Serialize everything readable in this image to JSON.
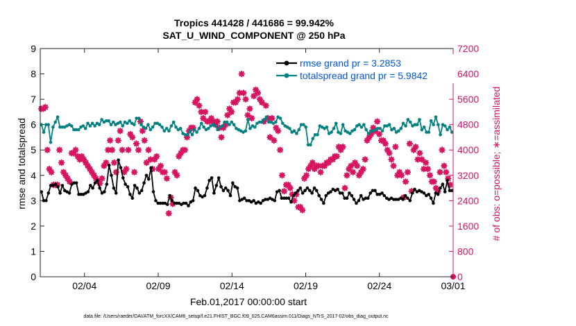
{
  "chart_data": {
    "type": "line",
    "title": "Tropics 441428 / 441686 = 99.942%",
    "subtitle": "SAT_U_WIND_COMPONENT @ 250 hPa",
    "xlabel": "Feb.01,2017 00:00:00 start",
    "ylabel_left": "rmse and totalspread",
    "ylabel_right": "# of obs: o=possible; ∗=assimilated",
    "xlim": [
      1,
      29
    ],
    "ylim_left": [
      0,
      9
    ],
    "ylim_right": [
      0,
      7200
    ],
    "x_tick_labels": [
      "02/04",
      "02/09",
      "02/14",
      "02/19",
      "02/24",
      "03/01"
    ],
    "x_tick_values": [
      4,
      9,
      14,
      19,
      24,
      29
    ],
    "y_ticks_left": [
      "0",
      "1",
      "2",
      "3",
      "4",
      "5",
      "6",
      "7",
      "8",
      "9"
    ],
    "y_ticks_right": [
      "0",
      "800",
      "1600",
      "2400",
      "3200",
      "4000",
      "4800",
      "5600",
      "6400",
      "7200"
    ],
    "footnote": "data file: /Users/raeder/DAI/ATM_forcXX/CAM6_setup/f.e21.FHIST_BGC.f09_025.CAM6assim.011/Diags_NTrS_2017-02/obs_diag_output.nc",
    "colors": {
      "rmse": "#000000",
      "spread": "#008080",
      "obs": "#d6145f",
      "legend_text": "#0055dd"
    },
    "series": [
      {
        "name": "rmse grand pr = 3.2853",
        "role": "rmse",
        "values": [
          3.35,
          3.0,
          3.0,
          3.3,
          3.6,
          3.6,
          3.65,
          3.55,
          3.3,
          3.6,
          3.4,
          3.35,
          3.3,
          3.65,
          3.7,
          3.7,
          3.25,
          3.25,
          3.25,
          3.3,
          3.35,
          3.6,
          3.5,
          3.7,
          3.8,
          3.5,
          3.3,
          3.35,
          3.65,
          4.4,
          4.0,
          3.5,
          3.3,
          4.6,
          4.3,
          3.9,
          3.65,
          3.55,
          3.25,
          3.1,
          3.6,
          3.5,
          3.3,
          3.4,
          3.7,
          4.0,
          3.85,
          4.3,
          3.35,
          3.0,
          2.9,
          2.9,
          2.9,
          2.9,
          2.85,
          3.2,
          3.0,
          2.9,
          2.9,
          2.9,
          2.85,
          2.9,
          2.9,
          2.8,
          2.95,
          3.0,
          3.5,
          3.4,
          3.2,
          3.15,
          3.2,
          3.5,
          3.8,
          3.9,
          3.3,
          3.6,
          3.9,
          3.55,
          3.4,
          3.5,
          3.4,
          3.2,
          3.7,
          3.55,
          3.5,
          3.0,
          3.05,
          3.1,
          3.0,
          3.0,
          2.95,
          3.0,
          2.9,
          2.95,
          2.9,
          3.0,
          3.05,
          3.05,
          3.1,
          3.05,
          3.0,
          3.35,
          3.4,
          3.1,
          3.1,
          3.1,
          3.1,
          2.95,
          3.2,
          3.3,
          3.4,
          3.5,
          3.3,
          3.4,
          3.5,
          3.4,
          3.3,
          3.5,
          3.4,
          3.2,
          3.05,
          2.9,
          3.2,
          3.3,
          3.35,
          3.45,
          3.4,
          3.45,
          3.3,
          3.3,
          3.1,
          3.1,
          3.3,
          3.2,
          3.05,
          2.9,
          3.0,
          3.2,
          3.05,
          3.1,
          3.1,
          3.3,
          3.4,
          3.4,
          3.25,
          3.25,
          3.3,
          3.2,
          3.1,
          3.05,
          3.1,
          3.05,
          3.05,
          3.05,
          3.1,
          3.05,
          3.2,
          3.1,
          3.0,
          3.3,
          3.45,
          3.35,
          3.4,
          3.35,
          3.3,
          3.2,
          3.25,
          3.1,
          2.9,
          3.3,
          3.25,
          3.5,
          3.65,
          3.35,
          3.8,
          3.4,
          3.4
        ]
      },
      {
        "name": "totalspread grand pr = 5.9842",
        "role": "spread",
        "values": [
          6.0,
          5.7,
          6.0,
          6.0,
          5.3,
          5.9,
          6.1,
          6.3,
          5.9,
          5.9,
          5.9,
          5.95,
          6.0,
          5.95,
          5.8,
          5.8,
          5.8,
          5.9,
          5.95,
          5.85,
          6.05,
          5.95,
          6.05,
          5.95,
          6.05,
          6.0,
          6.2,
          6.1,
          6.15,
          6.15,
          6.0,
          6.1,
          6.0,
          6.05,
          6.1,
          5.95,
          6.1,
          6.05,
          6.15,
          6.05,
          6.0,
          6.25,
          6.25,
          6.0,
          5.9,
          5.85,
          6.0,
          5.8,
          5.9,
          6.05,
          6.05,
          6.0,
          5.9,
          5.75,
          5.85,
          5.75,
          5.95,
          6.1,
          5.9,
          5.8,
          5.85,
          5.65,
          5.6,
          5.6,
          5.75,
          5.6,
          5.8,
          5.7,
          5.85,
          6.05,
          5.9,
          5.8,
          5.85,
          5.95,
          6.0,
          5.95,
          5.8,
          5.9,
          5.95,
          6.1,
          6.1,
          6.0,
          6.1,
          6.0,
          5.85,
          5.8,
          5.75,
          5.7,
          5.75,
          6.2,
          5.85,
          5.95,
          5.9,
          6.05,
          6.1,
          6.1,
          6.2,
          6.3,
          6.1,
          6.1,
          6.05,
          6.1,
          6.3,
          6.25,
          6.05,
          5.95,
          5.9,
          5.85,
          5.7,
          5.75,
          5.65,
          5.8,
          6.0,
          6.0,
          5.9,
          5.2,
          5.2,
          5.45,
          5.6,
          5.6,
          5.95,
          5.9,
          5.85,
          5.9,
          5.65,
          5.7,
          5.85,
          6.05,
          5.7,
          5.65,
          6.0,
          5.75,
          5.7,
          5.65,
          5.75,
          5.8,
          5.95,
          6.0,
          5.9,
          6.0,
          5.8,
          5.65,
          5.75,
          5.75,
          5.8,
          5.85,
          5.85,
          5.75,
          5.95,
          5.95,
          6.0,
          5.8,
          5.85,
          5.7,
          5.75,
          5.85,
          6.05,
          5.95,
          6.2,
          6.1,
          5.95,
          6.0,
          6.0,
          6.2,
          5.8,
          5.9,
          5.7,
          5.7,
          6.15,
          6.0,
          6.3,
          6.0,
          5.6,
          6.0,
          5.95,
          5.8,
          5.9,
          5.7
        ]
      }
    ],
    "obs_series": {
      "name": "# of obs assimilated",
      "marker": "∗",
      "values": [
        5300,
        5300,
        5350,
        4000,
        3400,
        3300,
        2900,
        2900,
        2900,
        4000,
        3600,
        3300,
        3200,
        3100,
        3000,
        3900,
        3900,
        4000,
        3800,
        3700,
        3800,
        3700,
        3600,
        3500,
        3400,
        3300,
        3200,
        3100,
        3000,
        2950,
        3100,
        3500,
        3600,
        4000,
        4300,
        4000,
        3600,
        3300,
        4300,
        4600,
        4000,
        3300,
        3400,
        4000,
        4500,
        4400,
        3300,
        4200,
        4000,
        4900,
        4600,
        4300,
        3600,
        4000,
        3700,
        3400,
        3700,
        3800,
        3400,
        3500,
        3300,
        3300,
        3100,
        2000,
        2500,
        2300,
        3300,
        3200,
        3800,
        3900,
        4000,
        4000,
        4400,
        4600,
        4700,
        4700,
        5500,
        5600,
        5400,
        5200,
        5000,
        5200,
        4900,
        4900,
        5000,
        4900,
        4800,
        4900,
        4700,
        4400,
        4700,
        4800,
        5100,
        5300,
        5200,
        5500,
        5500,
        5600,
        5800,
        6400,
        5800,
        5600,
        5100,
        5300,
        5000,
        5700,
        5900,
        5800,
        5600,
        5500,
        4900,
        5400,
        5000,
        4400,
        5000,
        4300,
        4700,
        4600,
        4000,
        3200,
        2700,
        2900,
        2900,
        2800,
        2600,
        2400,
        2600,
        2200,
        2200,
        2100,
        3100,
        3200,
        3400,
        3500,
        3600,
        3400,
        3500,
        3500,
        3300,
        3500,
        3500,
        3600,
        3600,
        3700,
        3700,
        3800,
        3800,
        4100,
        4000,
        4100,
        2800,
        3200,
        3400,
        3500,
        3300,
        3600,
        3500,
        3200,
        3300,
        3400,
        3700,
        4300,
        4400,
        4500,
        4700,
        4600,
        4900,
        4500,
        4300,
        4300,
        4200,
        4000,
        3900,
        3700,
        3500,
        4100,
        3200,
        3300,
        3200,
        2500,
        3000,
        3300,
        4200,
        2700,
        4000,
        4100,
        3700,
        3900,
        3700,
        3400,
        3600,
        3400,
        3200,
        3000,
        3000,
        2800,
        2700,
        3300,
        4000,
        3500,
        3300,
        3100,
        2900,
        0
      ],
      "final_possible": 0
    }
  }
}
